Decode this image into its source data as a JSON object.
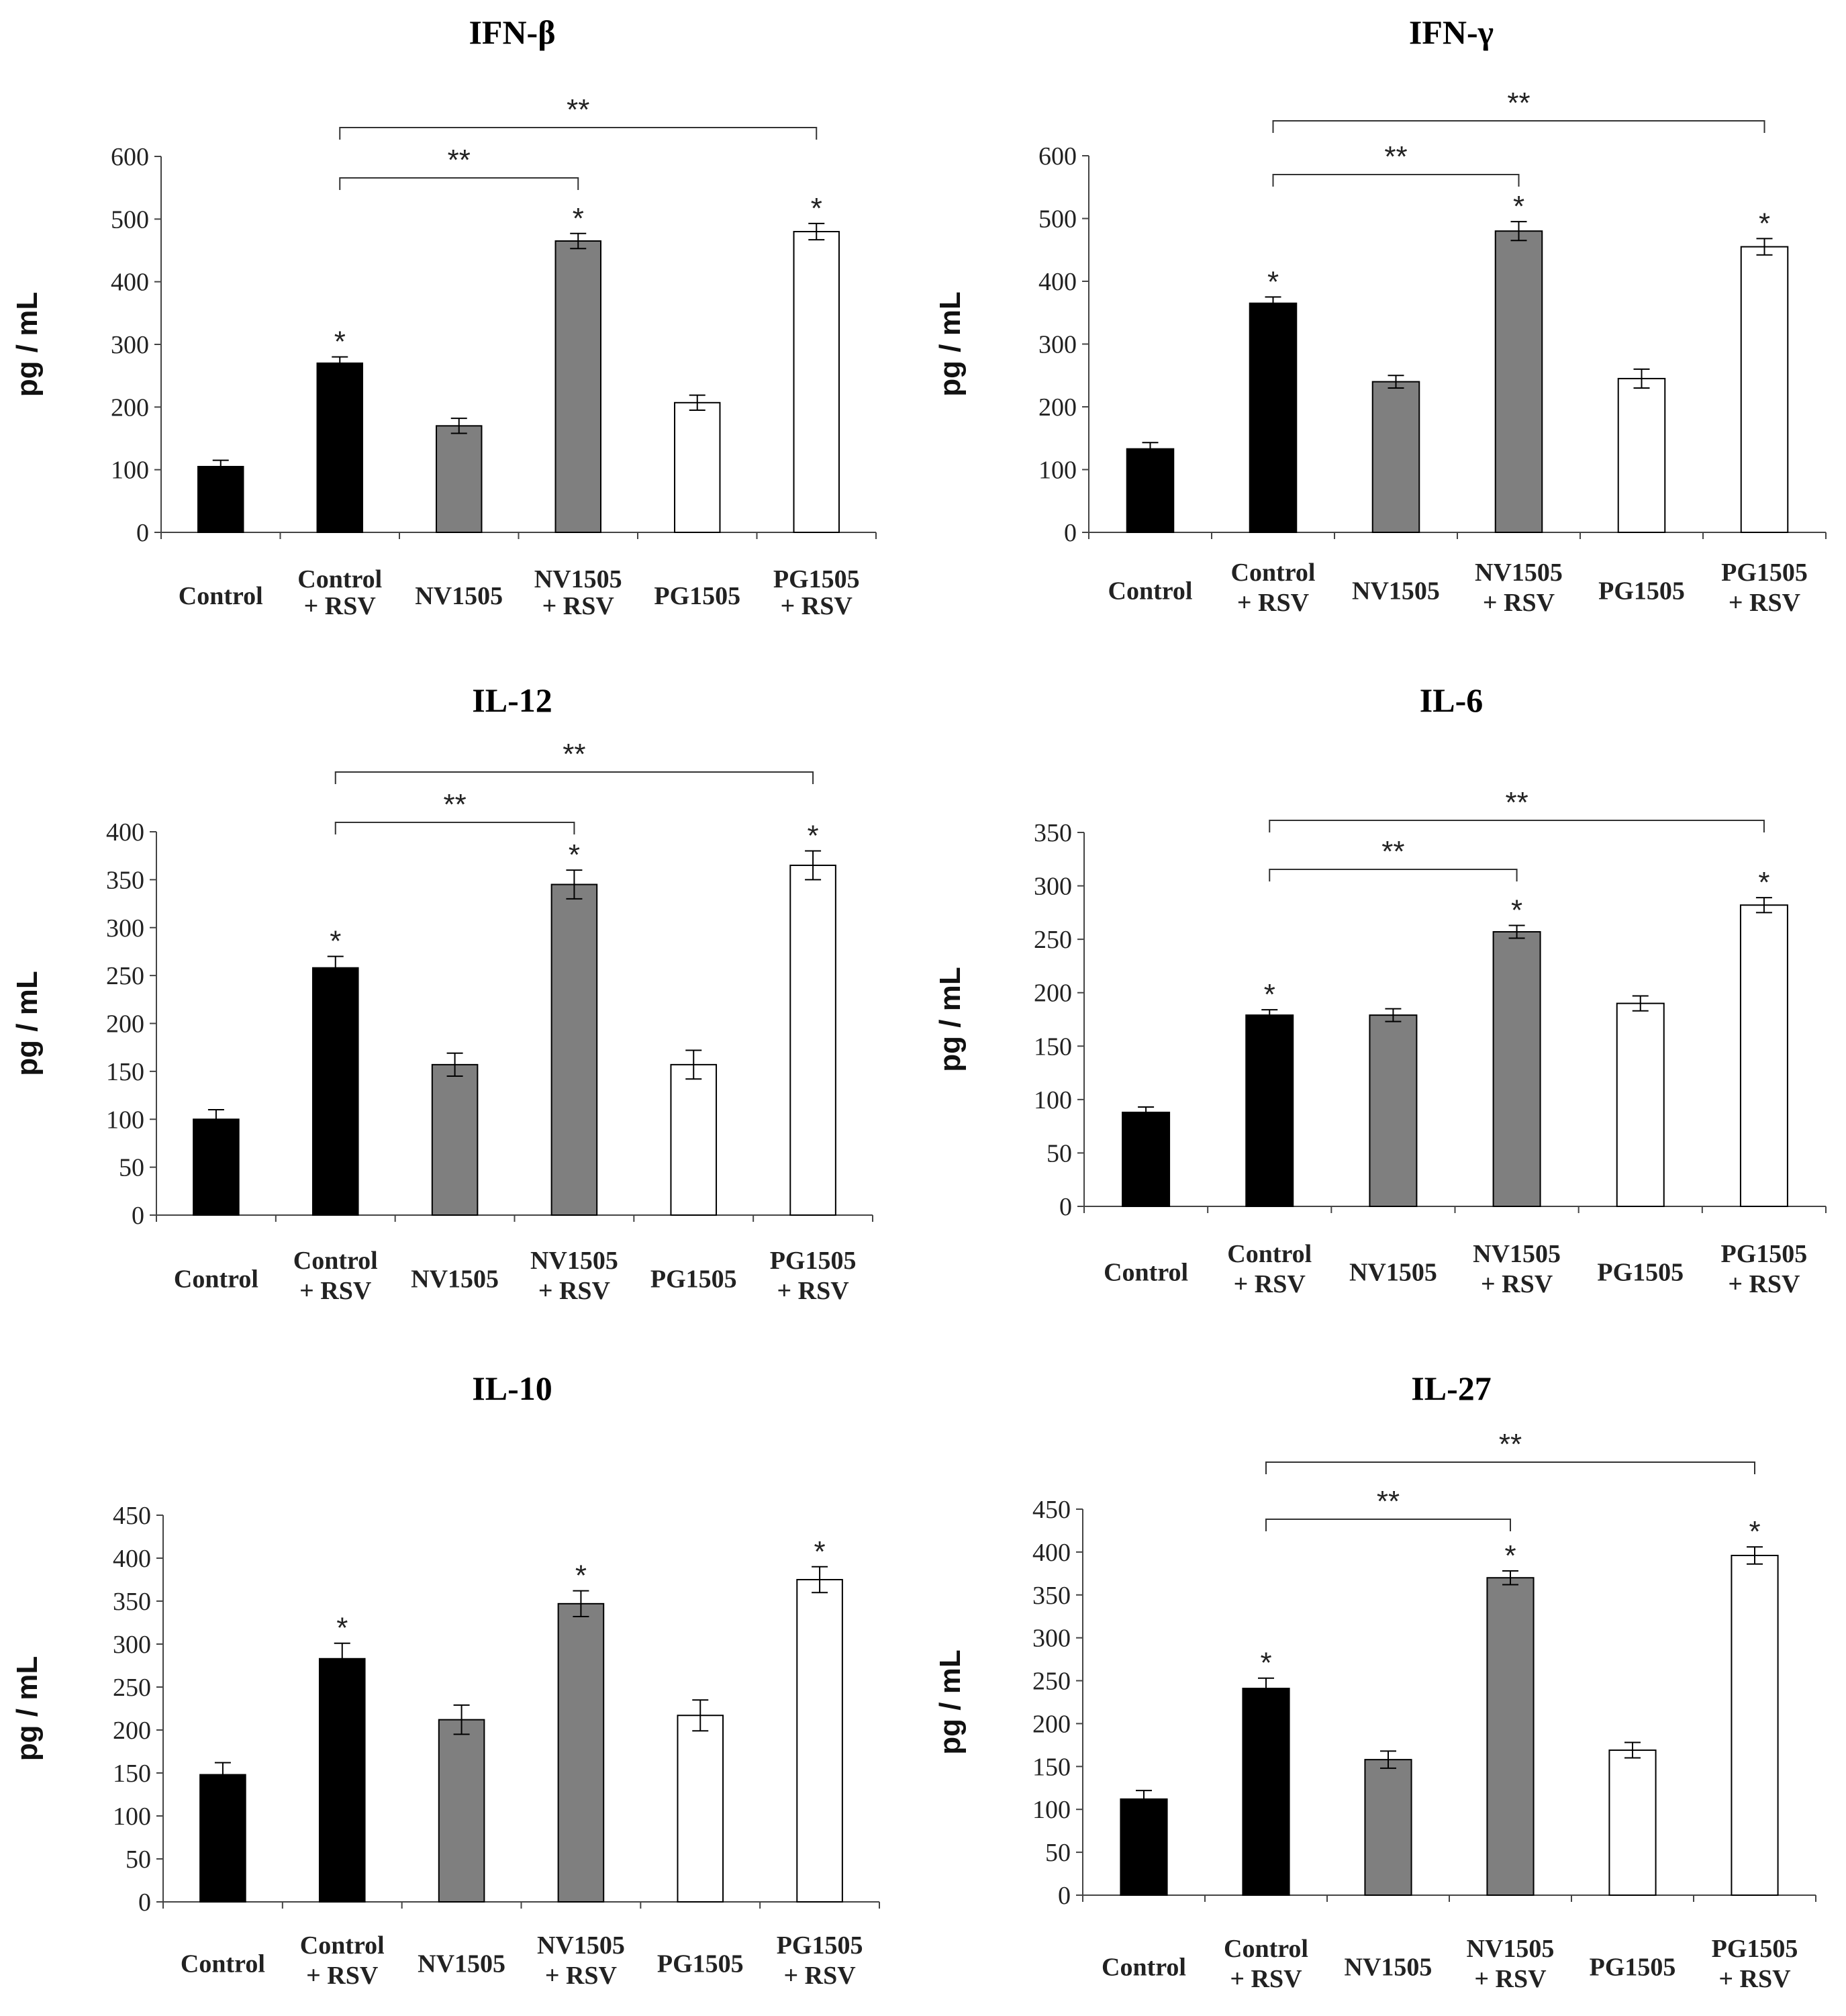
{
  "colors": {
    "control": "#000000",
    "nv": "#7f7f7f",
    "pg": "#ffffff"
  },
  "category_labels": [
    [
      "Control"
    ],
    [
      "Control",
      "+ RSV"
    ],
    [
      "NV1505"
    ],
    [
      "NV1505",
      "+ RSV"
    ],
    [
      "PG1505"
    ],
    [
      "PG1505",
      "+ RSV"
    ]
  ],
  "chart_data": [
    {
      "type": "bar",
      "title": "IFN-β",
      "ylabel": "pg / mL",
      "ylim": [
        0,
        600
      ],
      "yticks": [
        0,
        100,
        200,
        300,
        400,
        500,
        600
      ],
      "categories": [
        "Control",
        "Control + RSV",
        "NV1505",
        "NV1505 + RSV",
        "PG1505",
        "PG1505 + RSV"
      ],
      "values": [
        105,
        270,
        170,
        465,
        207,
        480
      ],
      "errors": [
        10,
        10,
        12,
        12,
        12,
        13
      ],
      "stars": [
        "",
        "*",
        "",
        "*",
        "",
        "*"
      ],
      "brackets": [
        {
          "from": 1,
          "to": 3,
          "label": "**"
        },
        {
          "from": 1,
          "to": 5,
          "label": "**"
        }
      ]
    },
    {
      "type": "bar",
      "title": "IFN-γ",
      "ylabel": "pg / mL",
      "ylim": [
        0,
        600
      ],
      "yticks": [
        0,
        100,
        200,
        300,
        400,
        500,
        600
      ],
      "categories": [
        "Control",
        "Control + RSV",
        "NV1505",
        "NV1505 + RSV",
        "PG1505",
        "PG1505 + RSV"
      ],
      "values": [
        133,
        365,
        240,
        480,
        245,
        455
      ],
      "errors": [
        10,
        10,
        10,
        15,
        15,
        13
      ],
      "stars": [
        "",
        "*",
        "",
        "*",
        "",
        "*"
      ],
      "brackets": [
        {
          "from": 1,
          "to": 3,
          "label": "**"
        },
        {
          "from": 1,
          "to": 5,
          "label": "**"
        }
      ]
    },
    {
      "type": "bar",
      "title": "IL-12",
      "ylabel": "pg / mL",
      "ylim": [
        0,
        400
      ],
      "yticks": [
        0,
        50,
        100,
        150,
        200,
        250,
        300,
        350,
        400
      ],
      "categories": [
        "Control",
        "Control + RSV",
        "NV1505",
        "NV1505 + RSV",
        "PG1505",
        "PG1505 + RSV"
      ],
      "values": [
        100,
        258,
        157,
        345,
        157,
        365
      ],
      "errors": [
        10,
        12,
        12,
        15,
        15,
        15
      ],
      "stars": [
        "",
        "*",
        "",
        "*",
        "",
        "*"
      ],
      "brackets": [
        {
          "from": 1,
          "to": 3,
          "label": "**"
        },
        {
          "from": 1,
          "to": 5,
          "label": "**"
        }
      ]
    },
    {
      "type": "bar",
      "title": "IL-6",
      "ylabel": "pg / mL",
      "ylim": [
        0,
        350
      ],
      "yticks": [
        0,
        50,
        100,
        150,
        200,
        250,
        300,
        350
      ],
      "categories": [
        "Control",
        "Control + RSV",
        "NV1505",
        "NV1505 + RSV",
        "PG1505",
        "PG1505 + RSV"
      ],
      "values": [
        88,
        179,
        179,
        257,
        190,
        282
      ],
      "errors": [
        5,
        5,
        6,
        6,
        7,
        7
      ],
      "stars": [
        "",
        "*",
        "",
        "*",
        "",
        "*"
      ],
      "brackets": [
        {
          "from": 1,
          "to": 3,
          "label": "**"
        },
        {
          "from": 1,
          "to": 5,
          "label": "**"
        }
      ]
    },
    {
      "type": "bar",
      "title": "IL-10",
      "ylabel": "pg / mL",
      "ylim": [
        0,
        450
      ],
      "yticks": [
        0,
        50,
        100,
        150,
        200,
        250,
        300,
        350,
        400,
        450
      ],
      "categories": [
        "Control",
        "Control + RSV",
        "NV1505",
        "NV1505 + RSV",
        "PG1505",
        "PG1505 + RSV"
      ],
      "values": [
        148,
        283,
        212,
        347,
        217,
        375
      ],
      "errors": [
        14,
        18,
        17,
        15,
        18,
        15
      ],
      "stars": [
        "",
        "*",
        "",
        "*",
        "",
        "*"
      ],
      "brackets": []
    },
    {
      "type": "bar",
      "title": "IL-27",
      "ylabel": "pg / mL",
      "ylim": [
        0,
        450
      ],
      "yticks": [
        0,
        50,
        100,
        150,
        200,
        250,
        300,
        350,
        400,
        450
      ],
      "categories": [
        "Control",
        "Control + RSV",
        "NV1505",
        "NV1505 + RSV",
        "PG1505",
        "PG1505 + RSV"
      ],
      "values": [
        112,
        241,
        158,
        370,
        169,
        396
      ],
      "errors": [
        10,
        12,
        10,
        8,
        9,
        10
      ],
      "stars": [
        "",
        "*",
        "",
        "*",
        "",
        "*"
      ],
      "brackets": [
        {
          "from": 1,
          "to": 3,
          "label": "**"
        },
        {
          "from": 1,
          "to": 5,
          "label": "**"
        }
      ]
    }
  ]
}
